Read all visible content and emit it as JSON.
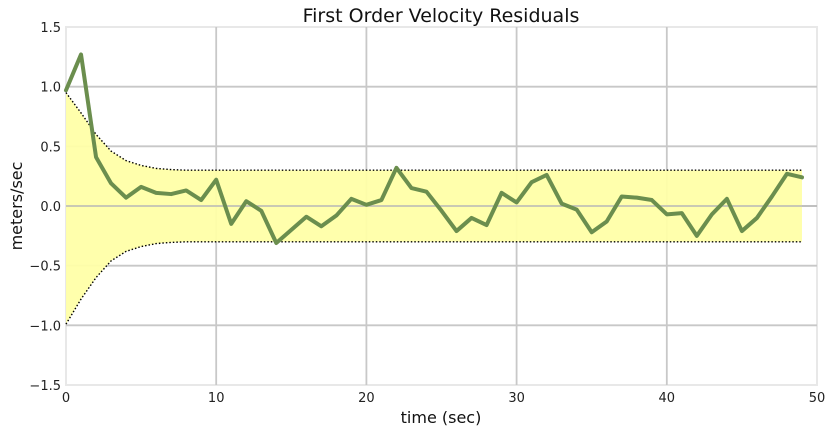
{
  "chart_data": {
    "type": "line",
    "title": "First Order Velocity Residuals",
    "xlabel": "time (sec)",
    "ylabel": "meters/sec",
    "xlim": [
      0,
      50
    ],
    "ylim": [
      -1.5,
      1.5
    ],
    "xticks": [
      0,
      10,
      20,
      30,
      40,
      50
    ],
    "xtick_labels": [
      "0",
      "10",
      "20",
      "30",
      "40",
      "50"
    ],
    "yticks": [
      -1.5,
      -1.0,
      -0.5,
      0.0,
      0.5,
      1.0,
      1.5
    ],
    "ytick_labels": [
      "−1.5",
      "−1.0",
      "−0.5",
      "0.0",
      "0.5",
      "1.0",
      "1.5"
    ],
    "grid": true,
    "x": [
      0,
      1,
      2,
      3,
      4,
      5,
      6,
      7,
      8,
      9,
      10,
      11,
      12,
      13,
      14,
      15,
      16,
      17,
      18,
      19,
      20,
      21,
      22,
      23,
      24,
      25,
      26,
      27,
      28,
      29,
      30,
      31,
      32,
      33,
      34,
      35,
      36,
      37,
      38,
      39,
      40,
      41,
      42,
      43,
      44,
      45,
      46,
      47,
      48,
      49
    ],
    "series": [
      {
        "role": "residual",
        "color": "#6b8e4e",
        "values": [
          0.97,
          1.27,
          0.41,
          0.19,
          0.07,
          0.16,
          0.11,
          0.1,
          0.13,
          0.05,
          0.22,
          -0.15,
          0.04,
          -0.04,
          -0.31,
          -0.2,
          -0.09,
          -0.17,
          -0.08,
          0.06,
          0.01,
          0.05,
          0.32,
          0.15,
          0.12,
          -0.04,
          -0.21,
          -0.1,
          -0.16,
          0.11,
          0.03,
          0.2,
          0.26,
          0.02,
          -0.03,
          -0.22,
          -0.13,
          0.08,
          0.07,
          0.05,
          -0.07,
          -0.06,
          -0.25,
          -0.07,
          0.06,
          -0.21,
          -0.1,
          0.08,
          0.27,
          0.24
        ]
      },
      {
        "role": "std-upper",
        "color": "#000000",
        "style": "dotted",
        "values": [
          0.95,
          0.78,
          0.6,
          0.46,
          0.38,
          0.34,
          0.315,
          0.305,
          0.3,
          0.3,
          0.3,
          0.3,
          0.3,
          0.3,
          0.3,
          0.3,
          0.3,
          0.3,
          0.3,
          0.3,
          0.3,
          0.3,
          0.3,
          0.3,
          0.3,
          0.3,
          0.3,
          0.3,
          0.3,
          0.3,
          0.3,
          0.3,
          0.3,
          0.3,
          0.3,
          0.3,
          0.3,
          0.3,
          0.3,
          0.3,
          0.3,
          0.3,
          0.3,
          0.3,
          0.3,
          0.3,
          0.3,
          0.3,
          0.3,
          0.3
        ]
      },
      {
        "role": "std-lower",
        "color": "#000000",
        "style": "dotted",
        "values": [
          -0.99,
          -0.78,
          -0.6,
          -0.46,
          -0.38,
          -0.34,
          -0.315,
          -0.305,
          -0.3,
          -0.3,
          -0.3,
          -0.3,
          -0.3,
          -0.3,
          -0.3,
          -0.3,
          -0.3,
          -0.3,
          -0.3,
          -0.3,
          -0.3,
          -0.3,
          -0.3,
          -0.3,
          -0.3,
          -0.3,
          -0.3,
          -0.3,
          -0.3,
          -0.3,
          -0.3,
          -0.3,
          -0.3,
          -0.3,
          -0.3,
          -0.3,
          -0.3,
          -0.3,
          -0.3,
          -0.3,
          -0.3,
          -0.3,
          -0.3,
          -0.3,
          -0.3,
          -0.3,
          -0.3,
          -0.3,
          -0.3,
          -0.3
        ]
      }
    ],
    "band_fill_color": "#ffffa8",
    "colors": {
      "grid": "#c8c8c8",
      "frame": "#e8e8e8",
      "zero_line": "#b8b8b8"
    }
  }
}
